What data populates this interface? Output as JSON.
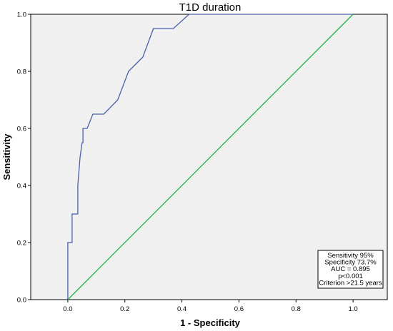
{
  "chart_data": {
    "type": "line",
    "title": "T1D duration",
    "xlabel": "1 - Specificity",
    "ylabel": "Sensitivity",
    "xlim": [
      -0.13,
      1.12
    ],
    "ylim": [
      0,
      1.0
    ],
    "x_ticks": [
      0.0,
      0.2,
      0.4,
      0.6,
      0.8,
      1.0
    ],
    "y_ticks": [
      0.0,
      0.2,
      0.4,
      0.6,
      0.8,
      1.0
    ],
    "x_tick_labels": [
      "0.0",
      "0.2",
      "0.4",
      "0.6",
      "0.8",
      "1.0"
    ],
    "y_tick_labels": [
      "0.0",
      "0.2",
      "0.4",
      "0.6",
      "0.8",
      "1.0"
    ],
    "grid": false,
    "background": "#f0f0f0",
    "series": [
      {
        "color": "#4a5fa8",
        "x": [
          0.0,
          0.0,
          0.015,
          0.015,
          0.035,
          0.035,
          0.043,
          0.05,
          0.053,
          0.053,
          0.068,
          0.088,
          0.126,
          0.175,
          0.213,
          0.263,
          0.3,
          0.37,
          0.425,
          1.0
        ],
        "y": [
          0.0,
          0.2,
          0.2,
          0.3,
          0.3,
          0.4,
          0.5,
          0.55,
          0.55,
          0.6,
          0.6,
          0.65,
          0.65,
          0.7,
          0.8,
          0.85,
          0.95,
          0.95,
          1.0,
          1.0
        ]
      },
      {
        "color": "#22b14c",
        "x": [
          0.0,
          1.0
        ],
        "y": [
          0.0,
          1.0
        ]
      }
    ],
    "annotation": {
      "placement": "bottom-right",
      "lines": [
        "Sensitivity 95%",
        "Specificity 73.7%",
        "AUC = 0.895",
        "p<0.001",
        "Criterion >21.5 years"
      ]
    }
  }
}
